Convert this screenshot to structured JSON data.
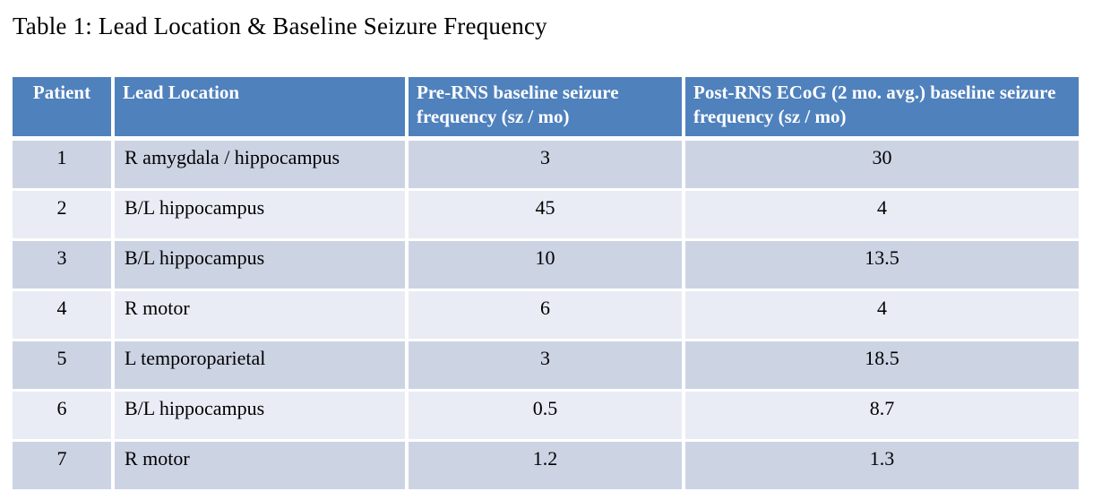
{
  "caption": "Table 1: Lead Location & Baseline Seizure Frequency",
  "colors": {
    "header_bg": "#4f81bd",
    "header_text": "#ffffff",
    "band_dark": "#ccd4e4",
    "band_light": "#e9ecf4",
    "body_text": "#000000",
    "grid_separator": "#ffffff"
  },
  "chart_data": {
    "type": "table",
    "title": "Table 1: Lead Location & Baseline Seizure Frequency",
    "columns": [
      "Patient",
      "Lead Location",
      "Pre-RNS baseline seizure frequency (sz / mo)",
      "Post-RNS ECoG (2 mo. avg.) baseline seizure frequency (sz / mo)"
    ],
    "rows": [
      [
        1,
        "R amygdala / hippocampus",
        3,
        30
      ],
      [
        2,
        "B/L hippocampus",
        45,
        4
      ],
      [
        3,
        "B/L hippocampus",
        10,
        13.5
      ],
      [
        4,
        "R motor",
        6,
        4
      ],
      [
        5,
        "L temporoparietal",
        3,
        18.5
      ],
      [
        6,
        "B/L hippocampus",
        0.5,
        8.7
      ],
      [
        7,
        "R motor",
        1.2,
        1.3
      ]
    ]
  },
  "table": {
    "headers": {
      "patient": "Patient",
      "lead_location": "Lead Location",
      "pre_rns": "Pre-RNS baseline seizure frequency (sz / mo)",
      "post_rns": "Post-RNS ECoG (2 mo. avg.) baseline seizure frequency (sz / mo)"
    },
    "rows": [
      {
        "patient": "1",
        "lead_location": "R amygdala / hippocampus",
        "pre_rns": "3",
        "post_rns": "30"
      },
      {
        "patient": "2",
        "lead_location": "B/L hippocampus",
        "pre_rns": "45",
        "post_rns": "4"
      },
      {
        "patient": "3",
        "lead_location": "B/L hippocampus",
        "pre_rns": "10",
        "post_rns": "13.5"
      },
      {
        "patient": "4",
        "lead_location": "R motor",
        "pre_rns": "6",
        "post_rns": "4"
      },
      {
        "patient": "5",
        "lead_location": "L temporoparietal",
        "pre_rns": "3",
        "post_rns": "18.5"
      },
      {
        "patient": "6",
        "lead_location": "B/L hippocampus",
        "pre_rns": "0.5",
        "post_rns": "8.7"
      },
      {
        "patient": "7",
        "lead_location": "R motor",
        "pre_rns": "1.2",
        "post_rns": "1.3"
      }
    ]
  }
}
